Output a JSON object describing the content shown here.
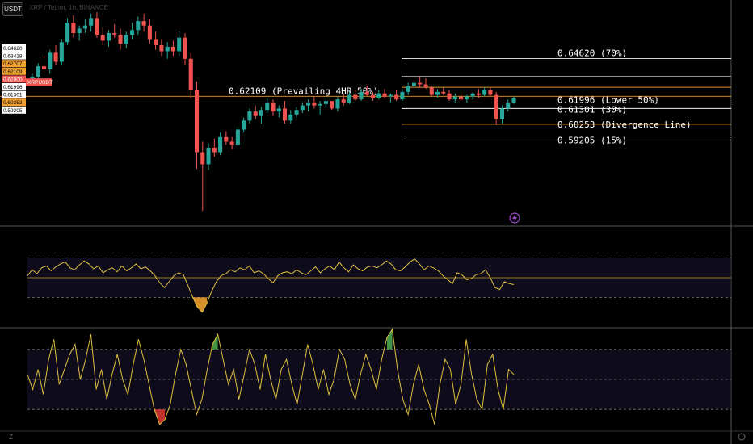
{
  "toolbar": {
    "currency_label": "USDT",
    "title_text": "XRP / Tether, 1h, BINANCE"
  },
  "colors": {
    "up": "#26a69a",
    "down": "#ef5350",
    "orange": "#f0a030",
    "yellow": "#e0c040",
    "white": "#ffffff"
  },
  "icons": {
    "bolt": "lightning-icon",
    "settings": "gear-icon",
    "z": "Z"
  },
  "price_scale": [
    {
      "value": "0.64620",
      "style": "white"
    },
    {
      "value": "0.63418",
      "style": "white"
    },
    {
      "value": "0.62707",
      "style": "orange"
    },
    {
      "value": "0.62109",
      "style": "orange"
    },
    {
      "value": "0.62000",
      "style": "red"
    },
    {
      "value": "0.61996",
      "style": "white"
    },
    {
      "value": "0.61301",
      "style": "white"
    },
    {
      "value": "0.60253",
      "style": "orange"
    },
    {
      "value": "0.59205",
      "style": "white"
    }
  ],
  "symbol_tag": "XRPUSDT",
  "levels": [
    {
      "value": 0.6462,
      "label": "0.64620 (70%)",
      "color": "white"
    },
    {
      "value": 0.63418,
      "label": "",
      "color": "white"
    },
    {
      "value": 0.62707,
      "label": "",
      "color": "orange"
    },
    {
      "value": 0.62109,
      "label": "0.62109 (Prevailing 4HR 50%)",
      "color": "orange"
    },
    {
      "value": 0.61996,
      "label": "0.61996 (Lower 50%)",
      "color": "white"
    },
    {
      "value": 0.61301,
      "label": "0.61301 (30%)",
      "color": "white"
    },
    {
      "value": 0.60253,
      "label": "0.60253 (Divergence Line)",
      "color": "orange"
    },
    {
      "value": 0.59205,
      "label": "0.59205 (15%)",
      "color": "white"
    }
  ],
  "chart_data": [
    {
      "type": "candlestick",
      "title": "XRP / Tether, 1h, BINANCE",
      "ylim": [
        0.535,
        0.685
      ],
      "candles": [
        [
          0.631,
          0.636,
          0.628,
          0.634
        ],
        [
          0.634,
          0.643,
          0.632,
          0.641
        ],
        [
          0.641,
          0.648,
          0.637,
          0.639
        ],
        [
          0.639,
          0.652,
          0.636,
          0.65
        ],
        [
          0.65,
          0.655,
          0.642,
          0.644
        ],
        [
          0.644,
          0.659,
          0.642,
          0.657
        ],
        [
          0.657,
          0.673,
          0.655,
          0.67
        ],
        [
          0.67,
          0.675,
          0.66,
          0.663
        ],
        [
          0.663,
          0.668,
          0.658,
          0.666
        ],
        [
          0.666,
          0.672,
          0.663,
          0.668
        ],
        [
          0.668,
          0.676,
          0.664,
          0.673
        ],
        [
          0.673,
          0.677,
          0.66,
          0.662
        ],
        [
          0.662,
          0.667,
          0.655,
          0.658
        ],
        [
          0.658,
          0.665,
          0.654,
          0.663
        ],
        [
          0.663,
          0.669,
          0.66,
          0.662
        ],
        [
          0.662,
          0.666,
          0.652,
          0.656
        ],
        [
          0.656,
          0.664,
          0.653,
          0.662
        ],
        [
          0.662,
          0.67,
          0.659,
          0.665
        ],
        [
          0.665,
          0.674,
          0.662,
          0.671
        ],
        [
          0.671,
          0.676,
          0.664,
          0.668
        ],
        [
          0.668,
          0.672,
          0.656,
          0.659
        ],
        [
          0.659,
          0.664,
          0.652,
          0.655
        ],
        [
          0.655,
          0.659,
          0.648,
          0.651
        ],
        [
          0.651,
          0.657,
          0.646,
          0.654
        ],
        [
          0.654,
          0.658,
          0.648,
          0.651
        ],
        [
          0.651,
          0.664,
          0.648,
          0.66
        ],
        [
          0.66,
          0.663,
          0.642,
          0.646
        ],
        [
          0.646,
          0.65,
          0.62,
          0.625
        ],
        [
          0.625,
          0.631,
          0.573,
          0.584
        ],
        [
          0.584,
          0.591,
          0.545,
          0.576
        ],
        [
          0.576,
          0.59,
          0.572,
          0.587
        ],
        [
          0.587,
          0.593,
          0.581,
          0.584
        ],
        [
          0.584,
          0.597,
          0.582,
          0.594
        ],
        [
          0.594,
          0.598,
          0.589,
          0.591
        ],
        [
          0.591,
          0.594,
          0.586,
          0.589
        ],
        [
          0.589,
          0.601,
          0.588,
          0.599
        ],
        [
          0.599,
          0.607,
          0.597,
          0.605
        ],
        [
          0.605,
          0.613,
          0.603,
          0.611
        ],
        [
          0.611,
          0.615,
          0.606,
          0.608
        ],
        [
          0.608,
          0.614,
          0.603,
          0.612
        ],
        [
          0.612,
          0.62,
          0.61,
          0.617
        ],
        [
          0.617,
          0.619,
          0.608,
          0.611
        ],
        [
          0.611,
          0.615,
          0.607,
          0.613
        ],
        [
          0.613,
          0.618,
          0.603,
          0.605
        ],
        [
          0.605,
          0.612,
          0.603,
          0.609
        ],
        [
          0.609,
          0.614,
          0.607,
          0.612
        ],
        [
          0.612,
          0.617,
          0.61,
          0.615
        ],
        [
          0.615,
          0.619,
          0.611,
          0.617
        ],
        [
          0.617,
          0.621,
          0.613,
          0.615
        ],
        [
          0.615,
          0.618,
          0.609,
          0.616
        ],
        [
          0.616,
          0.62,
          0.614,
          0.618
        ],
        [
          0.618,
          0.617,
          0.612,
          0.613
        ],
        [
          0.613,
          0.621,
          0.611,
          0.619
        ],
        [
          0.619,
          0.623,
          0.615,
          0.617
        ],
        [
          0.617,
          0.624,
          0.616,
          0.622
        ],
        [
          0.622,
          0.625,
          0.618,
          0.619
        ],
        [
          0.619,
          0.626,
          0.618,
          0.624
        ],
        [
          0.624,
          0.628,
          0.621,
          0.622
        ],
        [
          0.622,
          0.624,
          0.618,
          0.62
        ],
        [
          0.62,
          0.625,
          0.619,
          0.623
        ],
        [
          0.623,
          0.626,
          0.62,
          0.621
        ],
        [
          0.621,
          0.623,
          0.617,
          0.622
        ],
        [
          0.622,
          0.625,
          0.618,
          0.619
        ],
        [
          0.619,
          0.626,
          0.618,
          0.624
        ],
        [
          0.624,
          0.63,
          0.622,
          0.628
        ],
        [
          0.628,
          0.632,
          0.625,
          0.63
        ],
        [
          0.63,
          0.634,
          0.627,
          0.629
        ],
        [
          0.629,
          0.633,
          0.626,
          0.627
        ],
        [
          0.627,
          0.628,
          0.621,
          0.622
        ],
        [
          0.622,
          0.626,
          0.62,
          0.624
        ],
        [
          0.624,
          0.627,
          0.622,
          0.623
        ],
        [
          0.623,
          0.625,
          0.618,
          0.619
        ],
        [
          0.619,
          0.623,
          0.617,
          0.621
        ],
        [
          0.621,
          0.624,
          0.618,
          0.619
        ],
        [
          0.619,
          0.622,
          0.617,
          0.621
        ],
        [
          0.621,
          0.624,
          0.619,
          0.623
        ],
        [
          0.623,
          0.626,
          0.62,
          0.622
        ],
        [
          0.622,
          0.627,
          0.621,
          0.625
        ],
        [
          0.625,
          0.627,
          0.621,
          0.622
        ],
        [
          0.622,
          0.624,
          0.602,
          0.606
        ],
        [
          0.606,
          0.615,
          0.603,
          0.613
        ],
        [
          0.613,
          0.619,
          0.611,
          0.617
        ],
        [
          0.617,
          0.621,
          0.616,
          0.62
        ]
      ]
    },
    {
      "type": "line",
      "title": "",
      "ylim": [
        0,
        100
      ],
      "bands": [
        70,
        50,
        30
      ],
      "values": [
        52,
        58,
        54,
        60,
        62,
        57,
        61,
        64,
        66,
        60,
        58,
        63,
        67,
        64,
        59,
        62,
        55,
        58,
        60,
        56,
        62,
        57,
        60,
        64,
        59,
        61,
        57,
        52,
        45,
        40,
        46,
        52,
        55,
        53,
        42,
        30,
        20,
        15,
        24,
        36,
        46,
        52,
        54,
        58,
        56,
        60,
        58,
        62,
        55,
        57,
        54,
        49,
        45,
        52,
        55,
        56,
        54,
        58,
        55,
        53,
        57,
        61,
        55,
        59,
        62,
        58,
        66,
        60,
        56,
        63,
        59,
        57,
        61,
        62,
        60,
        63,
        67,
        64,
        58,
        57,
        61,
        66,
        69,
        64,
        58,
        62,
        60,
        57,
        52,
        48,
        44,
        55,
        53,
        48,
        49,
        53,
        54,
        58,
        50,
        40,
        38,
        46,
        44,
        43
      ]
    },
    {
      "type": "line",
      "title": "",
      "ylim": [
        0,
        100
      ],
      "bands": [
        80,
        50,
        20
      ],
      "values": [
        55,
        40,
        60,
        35,
        70,
        90,
        45,
        60,
        75,
        85,
        50,
        70,
        95,
        40,
        60,
        30,
        55,
        75,
        50,
        35,
        65,
        90,
        70,
        45,
        20,
        5,
        10,
        25,
        55,
        80,
        65,
        40,
        15,
        30,
        60,
        85,
        95,
        70,
        45,
        60,
        30,
        55,
        80,
        65,
        40,
        75,
        50,
        30,
        60,
        70,
        45,
        25,
        55,
        85,
        65,
        40,
        60,
        35,
        50,
        80,
        70,
        45,
        30,
        55,
        75,
        60,
        40,
        70,
        92,
        100,
        60,
        30,
        15,
        45,
        65,
        40,
        25,
        5,
        45,
        70,
        60,
        25,
        45,
        90,
        55,
        30,
        20,
        65,
        75,
        40,
        20,
        60,
        55
      ]
    }
  ]
}
